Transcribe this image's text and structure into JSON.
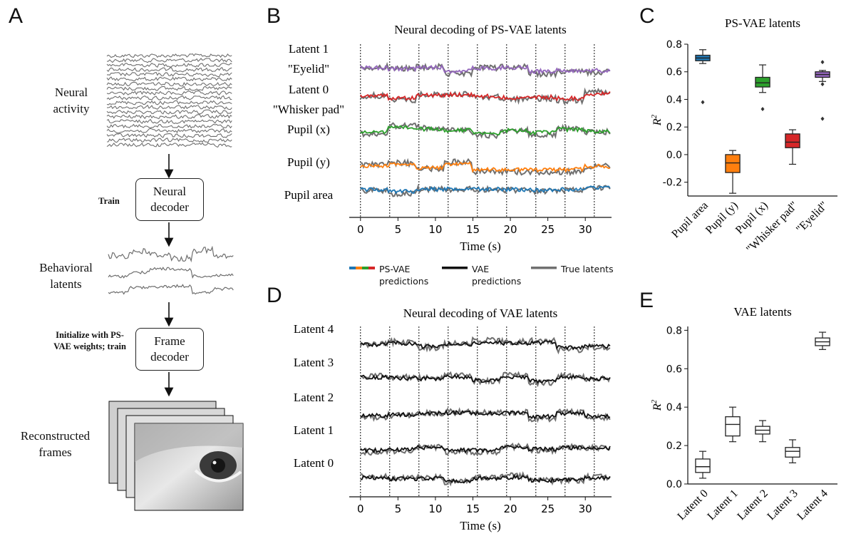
{
  "panels": {
    "A": "A",
    "B": "B",
    "C": "C",
    "D": "D",
    "E": "E"
  },
  "schematic": {
    "neural_activity": "Neural activity",
    "train_label": "Train",
    "neural_decoder": "Neural decoder",
    "behavioral_latents": "Behavioral latents",
    "init_label": "Initialize with PS-VAE weights; train",
    "frame_decoder": "Frame decoder",
    "reconstructed_frames": "Reconstructed frames"
  },
  "legend": {
    "psvae": "PS-VAE predictions",
    "vae": "VAE predictions",
    "true": "True latents"
  },
  "colors": {
    "pupil_area": "#1f77b4",
    "pupil_y": "#ff7f0e",
    "pupil_x": "#2ca02c",
    "whisker_pad": "#d62728",
    "eyelid": "#9467bd",
    "true_latent": "#707070",
    "vae_pred": "#111111"
  },
  "chart_data": [
    {
      "type": "line",
      "title": "Neural decoding of PS-VAE latents",
      "xlabel": "Time (s)",
      "xlim": [
        -1.5,
        33.5
      ],
      "xticks": [
        "0",
        "5",
        "10",
        "15",
        "20",
        "25",
        "30"
      ],
      "trial_boundaries": [
        0,
        3.9,
        7.8,
        11.7,
        15.6,
        19.5,
        23.4,
        27.3,
        31.2
      ],
      "series": [
        {
          "name": "Latent 1 \"Eyelid\"",
          "row_label": [
            "Latent 1",
            "\"Eyelid\""
          ],
          "color": "#9467bd"
        },
        {
          "name": "Latent 0 \"Whisker pad\"",
          "row_label": [
            "Latent 0",
            "\"Whisker pad\""
          ],
          "color": "#d62728"
        },
        {
          "name": "Pupil (x)",
          "row_label": [
            "Pupil (x)"
          ],
          "color": "#2ca02c"
        },
        {
          "name": "Pupil (y)",
          "row_label": [
            "Pupil (y)"
          ],
          "color": "#ff7f0e"
        },
        {
          "name": "Pupil area",
          "row_label": [
            "Pupil area"
          ],
          "color": "#1f77b4"
        }
      ]
    },
    {
      "type": "box",
      "title": "PS-VAE latents",
      "ylabel": "R",
      "ylabel_sup": "2",
      "ylim": [
        -0.3,
        0.8
      ],
      "yticks": [
        "-0.2",
        "0.0",
        "0.2",
        "0.4",
        "0.6",
        "0.8"
      ],
      "ytick_values": [
        -0.2,
        0.0,
        0.2,
        0.4,
        0.6,
        0.8
      ],
      "categories": [
        "Pupil area",
        "Pupil (y)",
        "Pupil (x)",
        "\"Whisker pad\"",
        "\"Eyelid\""
      ],
      "boxes": [
        {
          "whislo": 0.66,
          "q1": 0.68,
          "med": 0.7,
          "q3": 0.72,
          "whishi": 0.76,
          "fliers": [
            0.38
          ],
          "color": "#1f77b4"
        },
        {
          "whislo": -0.28,
          "q1": -0.13,
          "med": -0.06,
          "q3": 0.0,
          "whishi": 0.03,
          "fliers": [],
          "color": "#ff7f0e"
        },
        {
          "whislo": 0.45,
          "q1": 0.49,
          "med": 0.52,
          "q3": 0.56,
          "whishi": 0.65,
          "fliers": [
            0.33
          ],
          "color": "#2ca02c"
        },
        {
          "whislo": -0.07,
          "q1": 0.05,
          "med": 0.09,
          "q3": 0.15,
          "whishi": 0.18,
          "fliers": [],
          "color": "#d62728"
        },
        {
          "whislo": 0.53,
          "q1": 0.56,
          "med": 0.58,
          "q3": 0.6,
          "whishi": 0.61,
          "fliers": [
            0.67,
            0.51,
            0.26
          ],
          "color": "#9467bd"
        }
      ]
    },
    {
      "type": "line",
      "title": "Neural decoding of VAE latents",
      "xlabel": "Time (s)",
      "xlim": [
        -1.5,
        33.5
      ],
      "xticks": [
        "0",
        "5",
        "10",
        "15",
        "20",
        "25",
        "30"
      ],
      "trial_boundaries": [
        0,
        3.9,
        7.8,
        11.7,
        15.6,
        19.5,
        23.4,
        27.3,
        31.2
      ],
      "series": [
        {
          "name": "Latent 4"
        },
        {
          "name": "Latent 3"
        },
        {
          "name": "Latent 2"
        },
        {
          "name": "Latent 1"
        },
        {
          "name": "Latent 0"
        }
      ]
    },
    {
      "type": "box",
      "title": "VAE latents",
      "ylabel": "R",
      "ylabel_sup": "2",
      "ylim": [
        0.0,
        0.82
      ],
      "yticks": [
        "0.0",
        "0.2",
        "0.4",
        "0.6",
        "0.8"
      ],
      "ytick_values": [
        0.0,
        0.2,
        0.4,
        0.6,
        0.8
      ],
      "categories": [
        "Latent 0",
        "Latent 1",
        "Latent 2",
        "Latent 3",
        "Latent 4"
      ],
      "boxes": [
        {
          "whislo": 0.03,
          "q1": 0.06,
          "med": 0.09,
          "q3": 0.13,
          "whishi": 0.17
        },
        {
          "whislo": 0.22,
          "q1": 0.25,
          "med": 0.31,
          "q3": 0.35,
          "whishi": 0.4
        },
        {
          "whislo": 0.22,
          "q1": 0.26,
          "med": 0.28,
          "q3": 0.3,
          "whishi": 0.33
        },
        {
          "whislo": 0.11,
          "q1": 0.14,
          "med": 0.17,
          "q3": 0.19,
          "whishi": 0.23
        },
        {
          "whislo": 0.7,
          "q1": 0.72,
          "med": 0.74,
          "q3": 0.76,
          "whishi": 0.79
        }
      ]
    }
  ]
}
